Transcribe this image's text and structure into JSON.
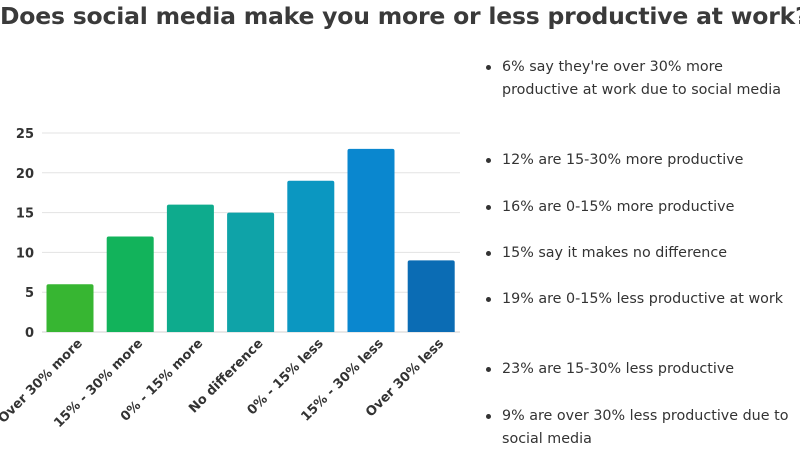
{
  "title": "Does social media make you more or less productive at work?",
  "chart_data": {
    "type": "bar",
    "title": "Does social media make you more or less productive at work?",
    "xlabel": "",
    "ylabel": "",
    "ylim": [
      0,
      25
    ],
    "yticks": [
      0,
      5,
      10,
      15,
      20,
      25
    ],
    "grid": true,
    "legend": "none",
    "categories": [
      "Over 30% more",
      "15% - 30% more",
      "0% - 15% more",
      "No difference",
      "0% - 15% less",
      "15% - 30% less",
      "Over 30% less"
    ],
    "values": [
      6,
      12,
      16,
      15,
      19,
      23,
      9
    ],
    "colors": [
      "#37b632",
      "#12b35b",
      "#0eab8d",
      "#0fa3a8",
      "#0b97c1",
      "#0a87cf",
      "#0b6cb4"
    ]
  },
  "bullets": [
    "6% say they're over 30% more productive at work due to social media",
    "12% are 15-30% more productive",
    "16% are 0-15% more productive",
    "15% say it makes no difference",
    "19%  are 0-15% less productive at work",
    "23% are 15-30% less productive",
    "9% are over 30% less productive due to social media"
  ]
}
